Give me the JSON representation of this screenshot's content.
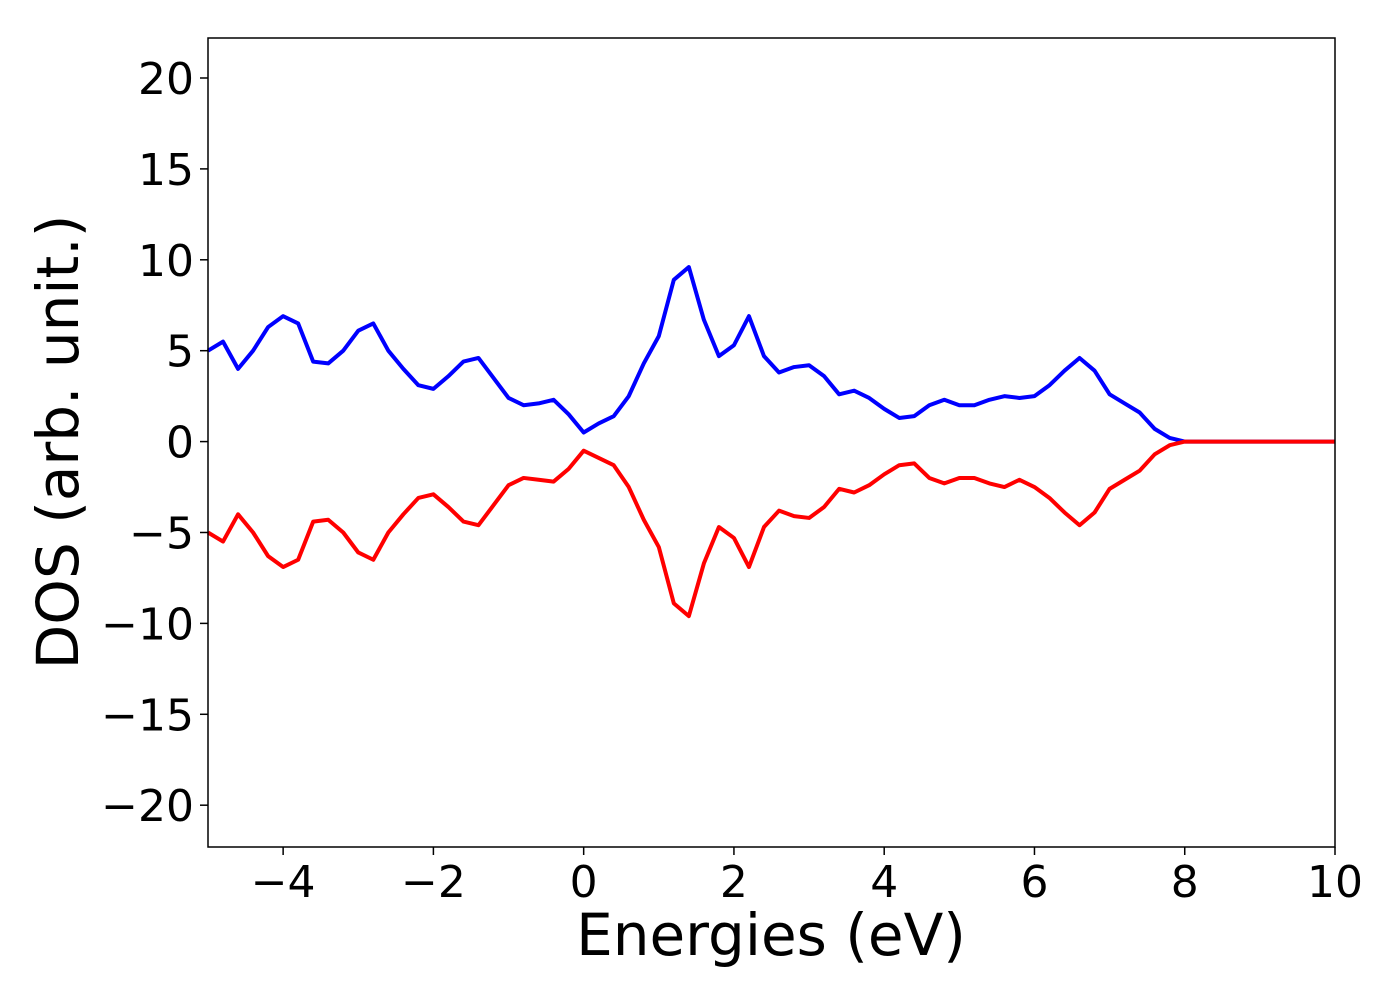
{
  "chart_data": {
    "type": "line",
    "xlabel": "Energies (eV)",
    "ylabel": "DOS (arb. unit.)",
    "x": [
      -5,
      -4.8,
      -4.6,
      -4.4,
      -4.2,
      -4,
      -3.8,
      -3.6,
      -3.4,
      -3.2,
      -3,
      -2.8,
      -2.6,
      -2.4,
      -2.2,
      -2,
      -1.8,
      -1.6,
      -1.4,
      -1.2,
      -1,
      -0.8,
      -0.6,
      -0.4,
      -0.2,
      0,
      0.2,
      0.4,
      0.6,
      0.8,
      1,
      1.2,
      1.4,
      1.6,
      1.8,
      2,
      2.2,
      2.4,
      2.6,
      2.8,
      3,
      3.2,
      3.4,
      3.6,
      3.8,
      4,
      4.2,
      4.4,
      4.6,
      4.8,
      5,
      5.2,
      5.4,
      5.6,
      5.8,
      6,
      6.2,
      6.4,
      6.6,
      6.8,
      7,
      7.2,
      7.4,
      7.6,
      7.8,
      8,
      8.2,
      8.4,
      8.6,
      8.8,
      9,
      9.2,
      9.4,
      9.6,
      9.8,
      10
    ],
    "series": [
      {
        "color": "#0000ff",
        "values": [
          5.0,
          5.5,
          4.0,
          5.0,
          6.3,
          6.9,
          6.5,
          4.4,
          4.3,
          5.0,
          6.1,
          6.5,
          5.0,
          4.0,
          3.1,
          2.9,
          3.6,
          4.4,
          4.6,
          3.5,
          2.4,
          2.0,
          2.1,
          2.3,
          1.5,
          0.5,
          1.0,
          1.4,
          2.5,
          4.3,
          5.8,
          8.9,
          9.6,
          6.7,
          4.7,
          5.3,
          6.9,
          4.7,
          3.8,
          4.1,
          4.2,
          3.6,
          2.6,
          2.8,
          2.4,
          1.8,
          1.3,
          1.4,
          2.0,
          2.3,
          2.0,
          2.0,
          2.3,
          2.5,
          2.4,
          2.5,
          3.1,
          3.9,
          4.6,
          3.9,
          2.6,
          2.1,
          1.6,
          0.7,
          0.2,
          0,
          0,
          0,
          0,
          0,
          0,
          0,
          0,
          0,
          0,
          0
        ]
      },
      {
        "color": "#ff0000",
        "values": [
          -5.0,
          -5.5,
          -4.0,
          -5.0,
          -6.3,
          -6.9,
          -6.5,
          -4.4,
          -4.3,
          -5.0,
          -6.1,
          -6.5,
          -5.0,
          -4.0,
          -3.1,
          -2.9,
          -3.6,
          -4.4,
          -4.6,
          -3.5,
          -2.4,
          -2.0,
          -2.1,
          -2.2,
          -1.5,
          -0.5,
          -0.9,
          -1.3,
          -2.5,
          -4.3,
          -5.8,
          -8.9,
          -9.6,
          -6.7,
          -4.7,
          -5.3,
          -6.9,
          -4.7,
          -3.8,
          -4.1,
          -4.2,
          -3.6,
          -2.6,
          -2.8,
          -2.4,
          -1.8,
          -1.3,
          -1.2,
          -2.0,
          -2.3,
          -2.0,
          -2.0,
          -2.3,
          -2.5,
          -2.1,
          -2.5,
          -3.1,
          -3.9,
          -4.6,
          -3.9,
          -2.6,
          -2.1,
          -1.6,
          -0.7,
          -0.2,
          0,
          0,
          0,
          0,
          0,
          0,
          0,
          0,
          0,
          0,
          0
        ]
      }
    ],
    "xlim": [
      -5,
      10
    ],
    "xticks": [
      {
        "value": -4,
        "label": "−4"
      },
      {
        "value": -2,
        "label": "−2"
      },
      0,
      2,
      4,
      6,
      8,
      10
    ],
    "ylim": [
      -22.3,
      22.2
    ],
    "yticks": [
      {
        "value": -20,
        "label": "−20"
      },
      {
        "value": -15,
        "label": "−15"
      },
      {
        "value": -10,
        "label": "−10"
      },
      {
        "value": -5,
        "label": "−5"
      },
      0,
      5,
      10,
      15,
      20
    ],
    "grid": false
  }
}
